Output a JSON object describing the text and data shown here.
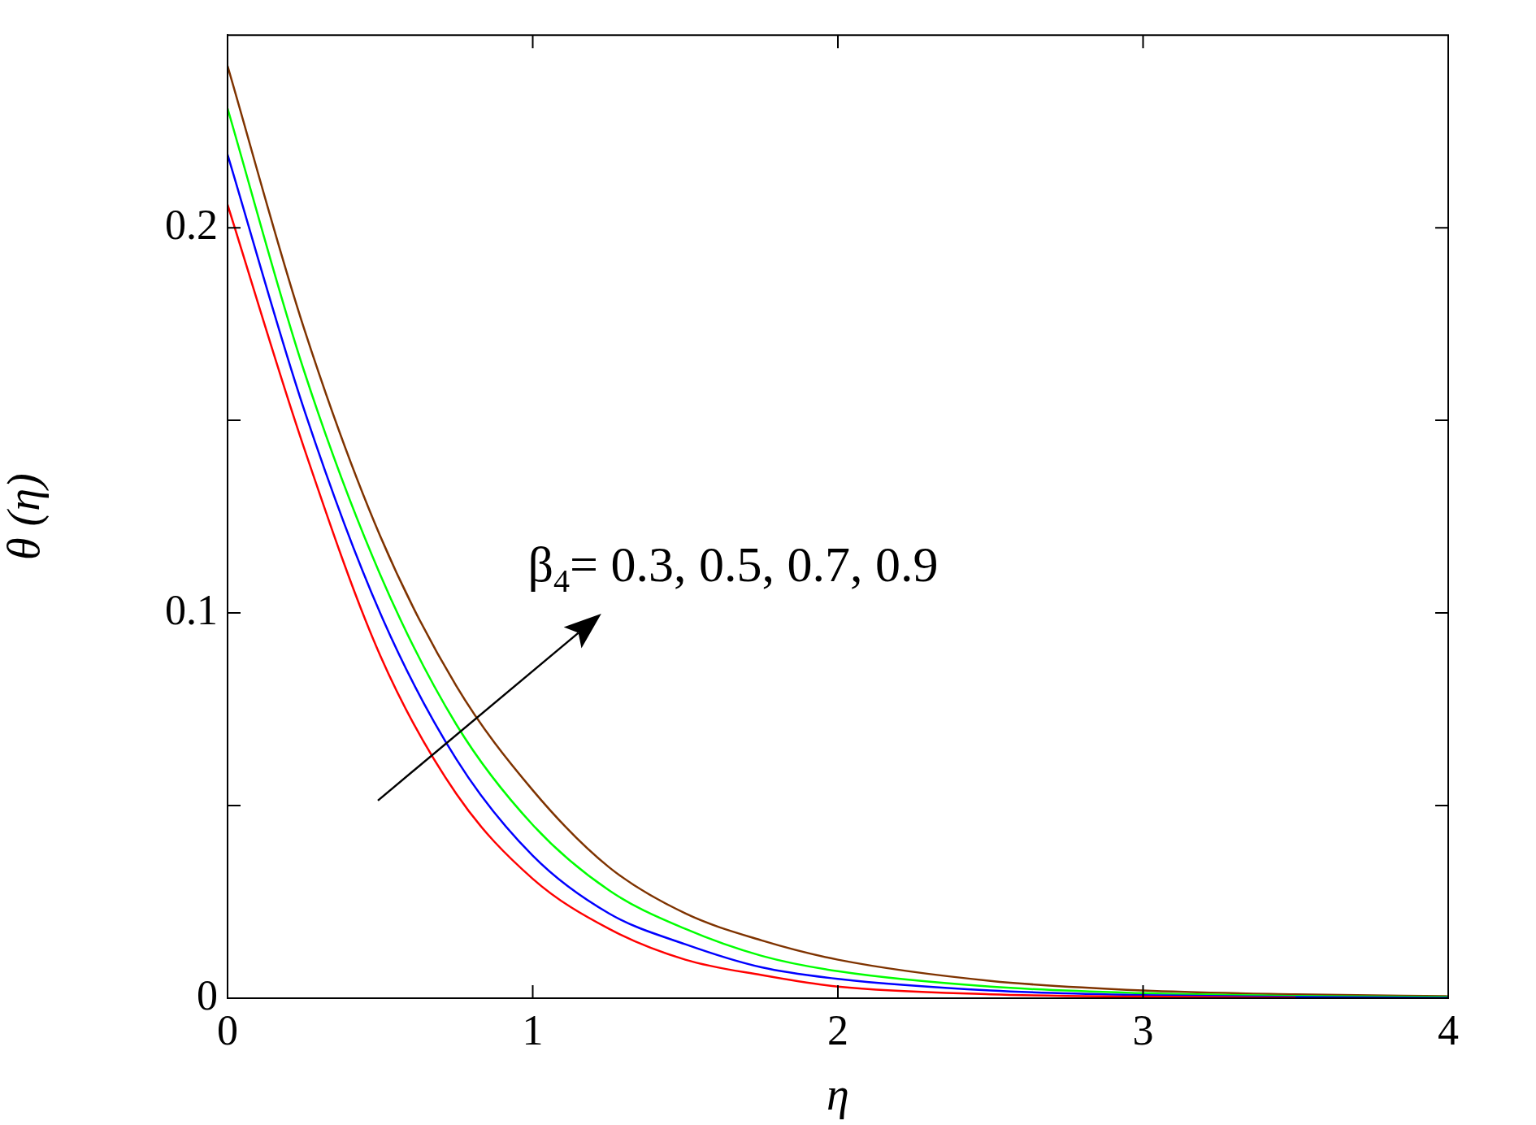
{
  "chart_data": {
    "type": "line",
    "xlabel": "η",
    "ylabel": "θ (η)",
    "x": [
      0,
      0.25,
      0.5,
      0.75,
      1,
      1.25,
      1.5,
      1.75,
      2,
      2.5,
      3,
      3.5,
      4
    ],
    "series": [
      {
        "color": "#ff0000",
        "values": [
          0.206,
          0.143,
          0.089,
          0.053,
          0.031,
          0.018,
          0.01,
          0.006,
          0.003,
          0.001,
          0.0004,
          0.0001,
          null
        ]
      },
      {
        "color": "#0000ff",
        "values": [
          0.219,
          0.153,
          0.1,
          0.062,
          0.037,
          0.022,
          0.014,
          0.008,
          0.005,
          0.002,
          0.0008,
          0.0003,
          0.0001
        ]
      },
      {
        "color": "#00ff00",
        "values": [
          0.231,
          0.163,
          0.11,
          0.071,
          0.045,
          0.028,
          0.018,
          0.011,
          0.007,
          0.003,
          0.0013,
          0.0006,
          0.0003
        ]
      },
      {
        "color": "#7f3300",
        "values": [
          0.242,
          0.174,
          0.12,
          0.081,
          0.054,
          0.034,
          0.022,
          0.015,
          0.01,
          0.0045,
          0.002,
          0.001,
          0.0005
        ]
      }
    ],
    "xlim": [
      0,
      4
    ],
    "xticks": [
      0,
      1,
      2,
      3,
      4
    ],
    "ylim": [
      0,
      0.25
    ],
    "yticks": [
      0,
      {
        "value": 0.05,
        "label": null
      },
      0.1,
      {
        "value": 0.15,
        "label": null
      },
      0.2
    ],
    "annotations": [
      "β$_{4}$= 0.3, 0.5, 0.7, 0.9"
    ],
    "grid": false,
    "legend": false,
    "marker": "none",
    "line_style": "solid"
  }
}
